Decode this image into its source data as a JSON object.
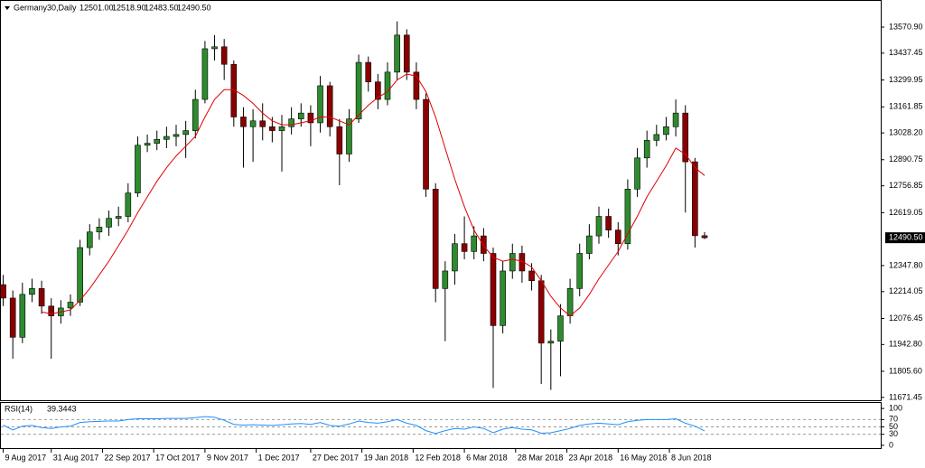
{
  "chart_data": {
    "type": "candlestick",
    "title": "Germany30,Daily",
    "header_values": [
      {
        "value": 12501,
        "label": "12501.00"
      },
      {
        "value": 12518.9,
        "label": "12518.90"
      },
      {
        "value": 12483.5,
        "label": "12483.50"
      },
      {
        "value": 12490.5,
        "label": "12490.50"
      }
    ],
    "x": [
      0,
      3,
      6,
      9,
      12,
      15,
      18,
      21,
      24,
      27,
      30,
      33,
      36,
      39,
      42,
      45,
      48,
      51,
      54,
      57,
      60,
      63,
      66,
      69,
      72,
      75,
      78,
      81,
      84,
      87,
      90,
      93,
      96,
      99,
      102,
      105,
      108,
      111,
      114,
      117,
      120,
      123,
      126,
      129,
      132,
      135,
      138,
      141,
      144,
      147,
      150,
      153,
      156,
      159,
      162,
      165,
      168,
      171,
      174,
      177,
      180,
      183,
      186,
      189,
      192,
      195,
      198,
      201,
      204,
      207,
      210,
      213,
      216,
      219
    ],
    "open": [
      12250,
      12181,
      11980,
      12200,
      12230,
      12140,
      12090,
      12130,
      12160,
      12440,
      12520,
      12545,
      12590,
      12600,
      12720,
      12965,
      12975,
      12995,
      13010,
      13020,
      13040,
      13200,
      13460,
      13470,
      13380,
      13110,
      13060,
      13090,
      13060,
      13040,
      13060,
      13100,
      13130,
      13080,
      13270,
      13060,
      12920,
      13100,
      13390,
      13290,
      13200,
      13340,
      13530,
      13340,
      13200,
      12740,
      12230,
      12320,
      12460,
      12420,
      12500,
      12410,
      12040,
      12320,
      12410,
      12320,
      12270,
      11950,
      11960,
      12090,
      12230,
      12410,
      12500,
      12600,
      12530,
      12460,
      12740,
      12900,
      12990,
      13020,
      13060,
      13130,
      12880,
      12501
    ],
    "high": [
      12300,
      12220,
      12260,
      12280,
      12270,
      12180,
      12170,
      12200,
      12480,
      12560,
      12590,
      12630,
      12650,
      12770,
      13010,
      13020,
      13040,
      13060,
      13070,
      13090,
      13250,
      13500,
      13530,
      13510,
      13400,
      13160,
      13150,
      13180,
      13110,
      13120,
      13160,
      13180,
      13170,
      13320,
      13290,
      13100,
      13150,
      13430,
      13420,
      13330,
      13390,
      13600,
      13560,
      13390,
      13230,
      12770,
      12370,
      12510,
      12600,
      12550,
      12540,
      12440,
      12370,
      12460,
      12450,
      12360,
      12300,
      12020,
      12150,
      12280,
      12460,
      12560,
      12650,
      12640,
      12570,
      12790,
      12950,
      13040,
      13070,
      13110,
      13200,
      13170,
      12900,
      12518.9
    ],
    "low": [
      12140,
      11870,
      11950,
      12160,
      12100,
      11870,
      12050,
      12090,
      12140,
      12400,
      12480,
      12500,
      12550,
      12570,
      12700,
      12930,
      12940,
      12950,
      12960,
      12900,
      13000,
      13180,
      13400,
      13300,
      13060,
      12850,
      12880,
      12990,
      12980,
      12830,
      13020,
      13060,
      12960,
      13030,
      13010,
      12760,
      12880,
      13080,
      13240,
      13150,
      13170,
      13300,
      13300,
      13150,
      12700,
      12160,
      11960,
      12250,
      12380,
      12380,
      12370,
      11720,
      12000,
      12280,
      12260,
      12220,
      11740,
      11710,
      11780,
      12050,
      12190,
      12380,
      12460,
      12490,
      12400,
      12430,
      12700,
      12850,
      12960,
      12990,
      13010,
      12620,
      12440,
      12483.5
    ],
    "close": [
      12181,
      11980,
      12200,
      12230,
      12140,
      12090,
      12130,
      12160,
      12440,
      12520,
      12545,
      12590,
      12600,
      12720,
      12965,
      12975,
      12995,
      13010,
      13020,
      13040,
      13200,
      13460,
      13470,
      13380,
      13110,
      13060,
      13090,
      13060,
      13040,
      13060,
      13100,
      13130,
      13080,
      13270,
      13060,
      12920,
      13100,
      13390,
      13290,
      13200,
      13340,
      13530,
      13340,
      13200,
      12740,
      12230,
      12320,
      12460,
      12420,
      12500,
      12410,
      12040,
      12320,
      12410,
      12320,
      12270,
      11950,
      11960,
      12090,
      12230,
      12410,
      12500,
      12600,
      12530,
      12460,
      12740,
      12900,
      12990,
      13020,
      13060,
      13130,
      12880,
      12501,
      12490.5
    ],
    "colors": {
      "up": "#2e8b2e",
      "down": "#8b0000",
      "wick": "#000000"
    },
    "xlim": [
      -1,
      274
    ],
    "ylim": [
      11657,
      13710
    ],
    "yticks": [
      {
        "value": 13570.9,
        "label": "13570.90"
      },
      {
        "value": 13437.45,
        "label": "13437.45"
      },
      {
        "value": 13299.95,
        "label": "13299.95"
      },
      {
        "value": 13161.85,
        "label": "13161.85"
      },
      {
        "value": 13028.2,
        "label": "13028.20"
      },
      {
        "value": 12890.75,
        "label": "12890.75"
      },
      {
        "value": 12756.85,
        "label": "12756.85"
      },
      {
        "value": 12619.05,
        "label": "12619.05"
      },
      {
        "value": 12347.8,
        "label": "12347.80"
      },
      {
        "value": 12214.05,
        "label": "12214.05"
      },
      {
        "value": 12076.45,
        "label": "12076.45"
      },
      {
        "value": 11942.8,
        "label": "11942.80"
      },
      {
        "value": 11805.6,
        "label": "11805.60"
      },
      {
        "value": 11671.45,
        "label": "11671.45"
      }
    ],
    "last_price": {
      "value": 12490.5,
      "label": "12490.50"
    },
    "xticks": [
      {
        "value": 0,
        "label": "9 Aug 2017"
      },
      {
        "value": 15,
        "label": "31 Aug 2017"
      },
      {
        "value": 31,
        "label": "22 Sep 2017"
      },
      {
        "value": 47,
        "label": "17 Oct 2017"
      },
      {
        "value": 63,
        "label": "9 Nov 2017"
      },
      {
        "value": 79,
        "label": "1 Dec 2017"
      },
      {
        "value": 96,
        "label": "27 Dec 2017"
      },
      {
        "value": 112,
        "label": "19 Jan 2018"
      },
      {
        "value": 128,
        "label": "12 Feb 2018"
      },
      {
        "value": 144,
        "label": "6 Mar 2018"
      },
      {
        "value": 160,
        "label": "28 Mar 2018"
      },
      {
        "value": 176,
        "label": "23 Apr 2018"
      },
      {
        "value": 192,
        "label": "16 May 2018"
      },
      {
        "value": 208,
        "label": "8 Jun 2018"
      }
    ],
    "ma": {
      "color": "#e00000",
      "values": [
        null,
        null,
        null,
        null,
        12110,
        12100,
        12110,
        12120,
        12170,
        12230,
        12300,
        12370,
        12450,
        12530,
        12620,
        12700,
        12780,
        12850,
        12910,
        12960,
        13010,
        13110,
        13200,
        13250,
        13250,
        13220,
        13180,
        13130,
        13090,
        13070,
        13070,
        13080,
        13090,
        13110,
        13110,
        13090,
        13070,
        13120,
        13170,
        13210,
        13240,
        13300,
        13330,
        13320,
        13240,
        13110,
        12950,
        12790,
        12650,
        12530,
        12450,
        12390,
        12370,
        12380,
        12370,
        12340,
        12270,
        12190,
        12130,
        12090,
        12130,
        12200,
        12280,
        12350,
        12420,
        12510,
        12600,
        12700,
        12780,
        12860,
        12950,
        12920,
        12850,
        12810
      ]
    },
    "rsi": {
      "name": "RSI(14)",
      "color": "#1e90ff",
      "values": [
        55,
        42,
        52,
        54,
        48,
        46,
        50,
        52,
        62,
        64,
        65,
        66,
        66,
        70,
        72,
        72,
        72,
        73,
        73,
        73,
        75,
        78,
        76,
        68,
        57,
        55,
        56,
        55,
        54,
        56,
        58,
        59,
        57,
        62,
        54,
        52,
        58,
        66,
        62,
        60,
        64,
        70,
        60,
        54,
        40,
        32,
        40,
        46,
        44,
        50,
        46,
        34,
        44,
        48,
        44,
        42,
        33,
        34,
        40,
        46,
        54,
        58,
        60,
        58,
        56,
        64,
        68,
        70,
        70,
        70,
        72,
        60,
        52,
        39.3443
      ],
      "ylim": [
        -10,
        115
      ],
      "yticks": [
        100,
        70,
        50,
        30,
        0
      ],
      "levels": [
        70,
        50,
        30
      ]
    }
  }
}
